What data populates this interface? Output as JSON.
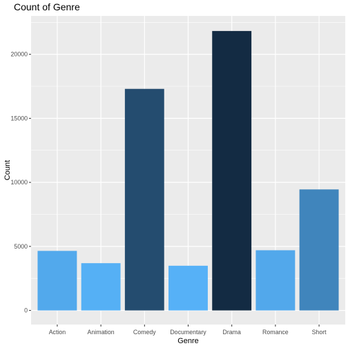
{
  "chart_data": {
    "type": "bar",
    "title": "Count of Genre",
    "xlabel": "Genre",
    "ylabel": "Count",
    "categories": [
      "Action",
      "Animation",
      "Comedy",
      "Documentary",
      "Drama",
      "Romance",
      "Short"
    ],
    "values": [
      4650,
      3690,
      17300,
      3490,
      21820,
      4700,
      9450
    ],
    "ylim": [
      -1100,
      23000
    ],
    "yticks": [
      0,
      5000,
      10000,
      15000,
      20000
    ],
    "ytick_labels": [
      "0",
      "5000",
      "10000",
      "15000",
      "20000"
    ],
    "fill_scale": {
      "low": "#56B1F7",
      "high": "#132B43",
      "domain": [
        3490,
        21820
      ]
    },
    "panel_background": "#EBEBEB",
    "grid": true,
    "legend": "none"
  }
}
